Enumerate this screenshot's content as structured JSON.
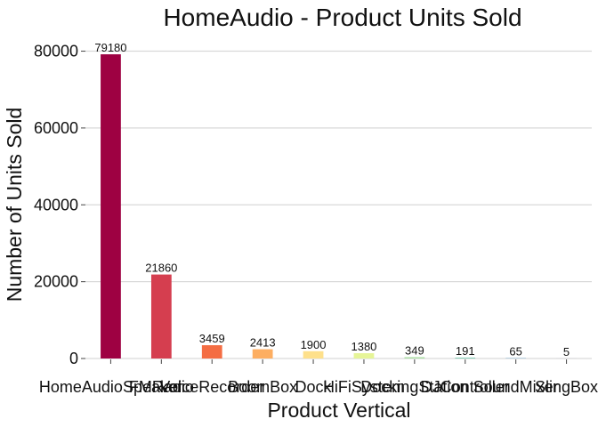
{
  "chart_data": {
    "type": "bar",
    "title": "HomeAudio - Product Units Sold",
    "xlabel": "Product Vertical",
    "ylabel": "Number of Units Sold",
    "categories": [
      "HomeAudioSpeaker",
      "FMRadio",
      "VoiceRecorder",
      "BoomBox",
      "Dock",
      "HiFiSystem",
      "DockingStation",
      "DJController",
      "SoundMixer",
      "SlingBox"
    ],
    "values": [
      79180,
      21860,
      3459,
      2413,
      1900,
      1380,
      349,
      191,
      65,
      5
    ],
    "colors": [
      "#9e0142",
      "#d53e4f",
      "#f46d43",
      "#fdae61",
      "#fee08b",
      "#e6f598",
      "#abdda4",
      "#66c2a5",
      "#3288bd",
      "#5e4fa2"
    ],
    "yticks": [
      0,
      20000,
      40000,
      60000,
      80000
    ],
    "ylim": [
      0,
      82000
    ],
    "grid": "horizontal",
    "legend": "none"
  }
}
